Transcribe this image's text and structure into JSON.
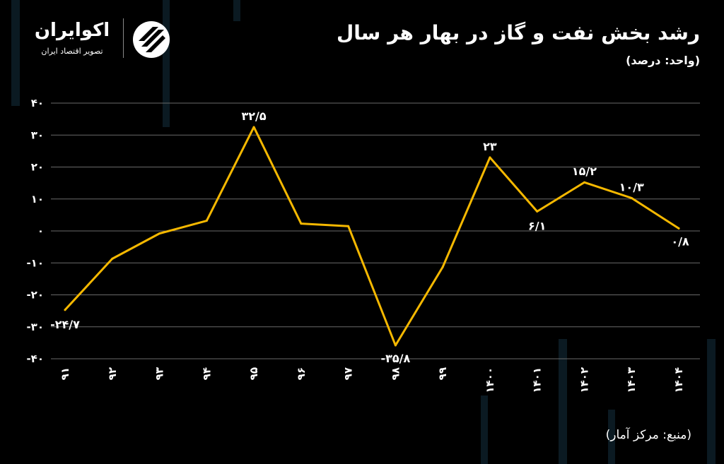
{
  "header": {
    "title": "رشد بخش نفت و گاز در بهار هر سال",
    "unit": "(واحد: درصد)"
  },
  "logo": {
    "name": "اکوایران",
    "tagline": "تصویر اقتصاد ایران"
  },
  "source": "(منبع: مرکز آمار)",
  "colors": {
    "line": "#f5b800",
    "grid": "#6a6a6a",
    "background": "#000000"
  },
  "chart_data": {
    "type": "line",
    "title": "رشد بخش نفت و گاز در بهار هر سال",
    "xlabel": "",
    "ylabel": "",
    "ylim": [
      -40,
      40
    ],
    "yticks": [
      40,
      30,
      20,
      10,
      0,
      -10,
      -20,
      -30,
      -40
    ],
    "ytick_labels": [
      "۴۰",
      "۳۰",
      "۲۰",
      "۱۰",
      "۰",
      "-۱۰",
      "-۲۰",
      "-۳۰",
      "-۴۰"
    ],
    "categories": [
      "۹۱",
      "۹۲",
      "۹۳",
      "۹۴",
      "۹۵",
      "۹۶",
      "۹۷",
      "۹۸",
      "۹۹",
      "۱۴۰۰",
      "۱۴۰۱",
      "۱۴۰۲",
      "۱۴۰۳",
      "۱۴۰۴"
    ],
    "grid": true,
    "legend": "none",
    "series": [
      {
        "values": [
          -24.7,
          -8.7,
          -0.8,
          3.2,
          32.5,
          2.3,
          1.5,
          -35.8,
          -11.3,
          23,
          6.1,
          15.2,
          10.3,
          0.8
        ],
        "labels": [
          "-۲۴/۷",
          "",
          "",
          "",
          "۳۲/۵",
          "",
          "",
          "-۳۵/۸",
          "",
          "۲۳",
          "۶/۱",
          "۱۵/۲",
          "۱۰/۳",
          "۰/۸"
        ]
      }
    ]
  }
}
